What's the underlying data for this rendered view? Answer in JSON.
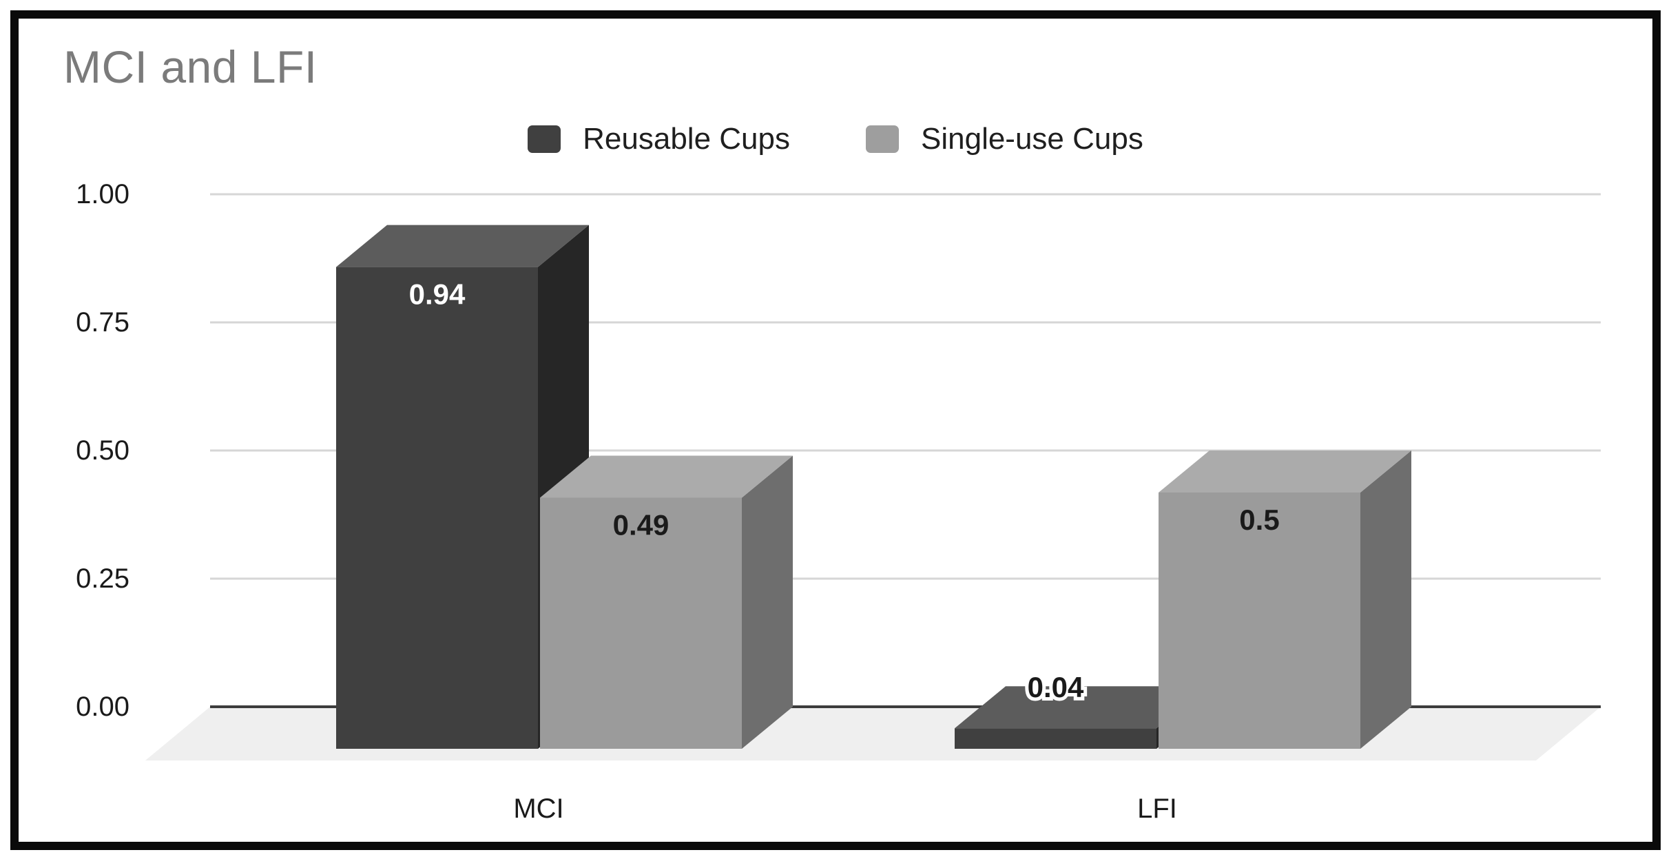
{
  "chart_data": {
    "type": "bar",
    "variant": "3d-column-grouped",
    "title": "MCI and LFI",
    "categories": [
      "MCI",
      "LFI"
    ],
    "series": [
      {
        "name": "Reusable Cups",
        "values": [
          0.94,
          0.04
        ],
        "data_labels": [
          "0.94",
          "0.04"
        ],
        "color_front": "#404040",
        "color_top": "#5c5c5c",
        "color_side": "#262626",
        "label_color": "#ffffff"
      },
      {
        "name": "Single-use Cups",
        "values": [
          0.49,
          0.5
        ],
        "data_labels": [
          "0.49",
          "0.5"
        ],
        "color_front": "#9b9b9b",
        "color_top": "#ababab",
        "color_side": "#6e6e6e",
        "label_color": "#1a1a1a"
      }
    ],
    "y_axis": {
      "min": 0,
      "max": 1,
      "ticks": [
        "1.00",
        "0.75",
        "0.50",
        "0.25",
        "0.00"
      ],
      "tick_values": [
        1.0,
        0.75,
        0.5,
        0.25,
        0.0
      ]
    },
    "legend_position": "top",
    "grid": true,
    "colors": {
      "background": "#ffffff",
      "frame_border": "#0a0a0a",
      "gridline": "#d6d6d6",
      "axis_line": "#3c3c3c",
      "floor": "#efefef",
      "title_text": "#7b7b7b",
      "axis_text": "#1a1a1a"
    }
  }
}
